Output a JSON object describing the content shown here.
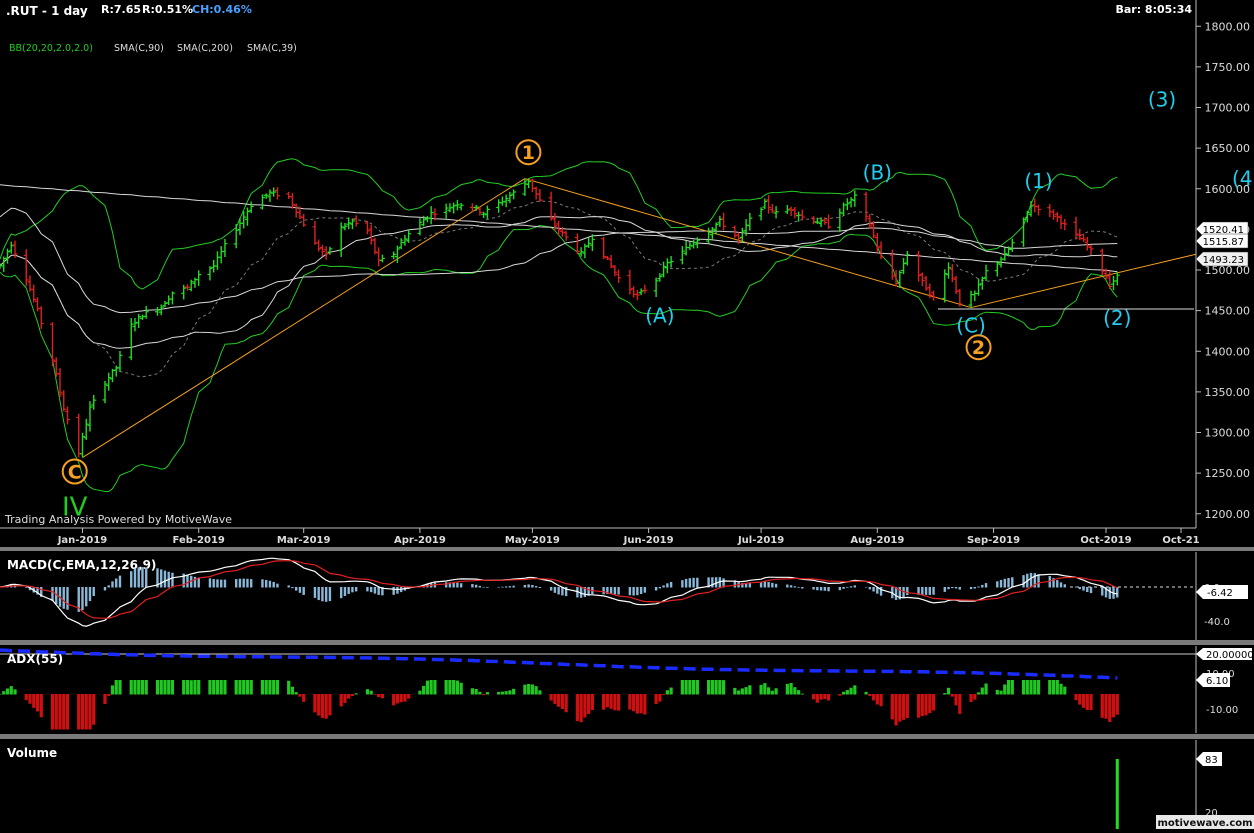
{
  "header": {
    "symbol": ".RUT - 1 day",
    "range": "R:7.65",
    "return": "R:0.51%",
    "change": "CH:0.46%",
    "bar_timer": "Bar: 8:05:34",
    "indicators": [
      "BB(20,20,2.0,2.0)",
      "SMA(C,90)",
      "SMA(C,200)",
      "SMA(C,39)"
    ]
  },
  "watermark": "Trading Analysis Powered by MotiveWave",
  "footer_logo": "motivewave.com",
  "colors": {
    "up": "#22dd22",
    "down": "#e02020",
    "bb": "#22cc22",
    "sma": "#d8d8d8",
    "orange": "#f5a020",
    "cyan": "#22ccee",
    "green_label": "#22cc22",
    "macd_hist": "#8ab8d8",
    "adx_line": "#1a2cff"
  },
  "price_panel": {
    "y_ticks": [
      "1800.00",
      "1750.00",
      "1700.00",
      "1650.00",
      "1600.00",
      "1550.00",
      "1500.00",
      "1450.00",
      "1400.00",
      "1350.00",
      "1300.00",
      "1250.00",
      "1200.00"
    ],
    "price_tags": [
      "1520.41",
      "1515.87",
      "1493.23"
    ],
    "support_level": 1452
  },
  "x_axis": {
    "labels": [
      "Jan-2019",
      "Feb-2019",
      "Mar-2019",
      "Apr-2019",
      "May-2019",
      "Jun-2019",
      "Jul-2019",
      "Aug-2019",
      "Sep-2019",
      "Oct-2019",
      "Oct-21"
    ]
  },
  "wave_labels": {
    "primary": [
      {
        "text": "1",
        "price": 1645,
        "style": "circle"
      },
      {
        "text": "2",
        "price": 1405,
        "style": "circle"
      },
      {
        "text": "C",
        "price": 1252,
        "style": "circle"
      },
      {
        "text": "IV",
        "price": 1210,
        "style": "plain"
      }
    ],
    "intermediate": [
      {
        "text": "(A)",
        "price": 1445
      },
      {
        "text": "(B)",
        "price": 1621
      },
      {
        "text": "(C)",
        "price": 1433
      },
      {
        "text": "(1)",
        "price": 1611
      },
      {
        "text": "(2)",
        "price": 1442
      },
      {
        "text": "(3)",
        "price": 1711
      },
      {
        "text": "(4",
        "price": 1614
      }
    ]
  },
  "macd_panel": {
    "title": "MACD(C,EMA,12,26,9)",
    "y_ticks": [
      "0.0",
      "-40.0"
    ],
    "value_tag": "-6.42"
  },
  "adx_panel": {
    "title": "ADX(55)",
    "y_ticks": [
      "20.00000",
      "10.00",
      "-10.00"
    ],
    "value_tag": "6.10"
  },
  "volume_panel": {
    "title": "Volume",
    "y_ticks": [
      "83",
      "20"
    ]
  },
  "chart_data": {
    "type": "candlestick",
    "symbol": "RUT",
    "interval": "1 day",
    "ylim": [
      1180,
      1820
    ],
    "x_range": [
      "2018-12-10",
      "2019-10-25"
    ],
    "ohlc": [
      [
        "2018-12-10",
        1502,
        1520,
        1485,
        1505
      ],
      [
        "2018-12-13",
        1505,
        1540,
        1498,
        1532
      ],
      [
        "2018-12-17",
        1528,
        1552,
        1480,
        1490
      ],
      [
        "2018-12-20",
        1490,
        1495,
        1440,
        1450
      ],
      [
        "2018-12-24",
        1450,
        1455,
        1380,
        1390
      ],
      [
        "2018-12-27",
        1390,
        1395,
        1320,
        1330
      ],
      [
        "2018-12-31",
        1330,
        1335,
        1265,
        1275
      ],
      [
        "2019-01-03",
        1275,
        1340,
        1270,
        1330
      ],
      [
        "2019-01-07",
        1330,
        1372,
        1325,
        1362
      ],
      [
        "2019-01-10",
        1362,
        1390,
        1340,
        1380
      ],
      [
        "2019-01-14",
        1380,
        1445,
        1375,
        1432
      ],
      [
        "2019-01-17",
        1432,
        1450,
        1420,
        1445
      ],
      [
        "2019-01-22",
        1445,
        1465,
        1430,
        1455
      ],
      [
        "2019-01-25",
        1455,
        1480,
        1445,
        1472
      ],
      [
        "2019-01-29",
        1472,
        1485,
        1455,
        1478
      ],
      [
        "2019-02-01",
        1478,
        1502,
        1470,
        1495
      ],
      [
        "2019-02-05",
        1495,
        1515,
        1485,
        1505
      ],
      [
        "2019-02-08",
        1505,
        1540,
        1498,
        1530
      ],
      [
        "2019-02-12",
        1530,
        1565,
        1525,
        1558
      ],
      [
        "2019-02-15",
        1558,
        1590,
        1552,
        1580
      ],
      [
        "2019-02-20",
        1580,
        1605,
        1572,
        1595
      ],
      [
        "2019-02-25",
        1595,
        1610,
        1580,
        1590
      ],
      [
        "2019-02-28",
        1590,
        1598,
        1555,
        1565
      ],
      [
        "2019-03-04",
        1565,
        1572,
        1525,
        1532
      ],
      [
        "2019-03-07",
        1532,
        1540,
        1510,
        1518
      ],
      [
        "2019-03-11",
        1518,
        1560,
        1512,
        1552
      ],
      [
        "2019-03-14",
        1552,
        1570,
        1540,
        1560
      ],
      [
        "2019-03-18",
        1560,
        1575,
        1540,
        1548
      ],
      [
        "2019-03-21",
        1548,
        1560,
        1500,
        1510
      ],
      [
        "2019-03-25",
        1510,
        1528,
        1495,
        1520
      ],
      [
        "2019-03-28",
        1520,
        1548,
        1515,
        1540
      ],
      [
        "2019-04-01",
        1540,
        1565,
        1535,
        1558
      ],
      [
        "2019-04-04",
        1558,
        1578,
        1552,
        1570
      ],
      [
        "2019-04-08",
        1570,
        1585,
        1562,
        1575
      ],
      [
        "2019-04-11",
        1575,
        1590,
        1568,
        1582
      ],
      [
        "2019-04-15",
        1582,
        1592,
        1570,
        1578
      ],
      [
        "2019-04-18",
        1578,
        1590,
        1560,
        1570
      ],
      [
        "2019-04-23",
        1570,
        1590,
        1565,
        1585
      ],
      [
        "2019-04-26",
        1585,
        1600,
        1578,
        1595
      ],
      [
        "2019-04-30",
        1595,
        1618,
        1588,
        1610
      ],
      [
        "2019-05-03",
        1610,
        1618,
        1575,
        1585
      ],
      [
        "2019-05-07",
        1585,
        1590,
        1545,
        1555
      ],
      [
        "2019-05-10",
        1555,
        1565,
        1530,
        1540
      ],
      [
        "2019-05-14",
        1540,
        1555,
        1510,
        1520
      ],
      [
        "2019-05-17",
        1520,
        1548,
        1515,
        1540
      ],
      [
        "2019-05-21",
        1540,
        1550,
        1505,
        1512
      ],
      [
        "2019-05-24",
        1512,
        1520,
        1482,
        1490
      ],
      [
        "2019-05-29",
        1490,
        1495,
        1460,
        1468
      ],
      [
        "2019-06-03",
        1468,
        1495,
        1460,
        1488
      ],
      [
        "2019-06-06",
        1488,
        1515,
        1482,
        1508
      ],
      [
        "2019-06-10",
        1508,
        1530,
        1500,
        1522
      ],
      [
        "2019-06-13",
        1522,
        1540,
        1515,
        1535
      ],
      [
        "2019-06-17",
        1535,
        1555,
        1528,
        1548
      ],
      [
        "2019-06-20",
        1548,
        1568,
        1540,
        1560
      ],
      [
        "2019-06-25",
        1560,
        1565,
        1530,
        1538
      ],
      [
        "2019-06-28",
        1538,
        1568,
        1532,
        1562
      ],
      [
        "2019-07-02",
        1562,
        1590,
        1555,
        1582
      ],
      [
        "2019-07-05",
        1582,
        1588,
        1562,
        1570
      ],
      [
        "2019-07-09",
        1570,
        1580,
        1560,
        1575
      ],
      [
        "2019-07-12",
        1575,
        1582,
        1560,
        1565
      ],
      [
        "2019-07-16",
        1565,
        1575,
        1552,
        1560
      ],
      [
        "2019-07-19",
        1560,
        1568,
        1548,
        1555
      ],
      [
        "2019-07-23",
        1555,
        1585,
        1550,
        1578
      ],
      [
        "2019-07-26",
        1578,
        1600,
        1570,
        1590
      ],
      [
        "2019-07-30",
        1590,
        1598,
        1548,
        1555
      ],
      [
        "2019-08-02",
        1555,
        1560,
        1505,
        1515
      ],
      [
        "2019-08-06",
        1515,
        1522,
        1470,
        1485
      ],
      [
        "2019-08-09",
        1485,
        1530,
        1480,
        1520
      ],
      [
        "2019-08-13",
        1520,
        1528,
        1475,
        1485
      ],
      [
        "2019-08-16",
        1485,
        1500,
        1458,
        1465
      ],
      [
        "2019-08-20",
        1465,
        1515,
        1460,
        1505
      ],
      [
        "2019-08-23",
        1505,
        1510,
        1452,
        1460
      ],
      [
        "2019-08-27",
        1460,
        1480,
        1450,
        1470
      ],
      [
        "2019-08-30",
        1470,
        1505,
        1465,
        1498
      ],
      [
        "2019-09-04",
        1498,
        1525,
        1492,
        1518
      ],
      [
        "2019-09-07",
        1518,
        1545,
        1512,
        1540
      ],
      [
        "2019-09-11",
        1540,
        1590,
        1535,
        1580
      ],
      [
        "2019-09-14",
        1580,
        1592,
        1570,
        1575
      ],
      [
        "2019-09-18",
        1575,
        1582,
        1558,
        1565
      ],
      [
        "2019-09-21",
        1565,
        1572,
        1545,
        1550
      ],
      [
        "2019-09-25",
        1550,
        1556,
        1528,
        1535
      ],
      [
        "2019-09-28",
        1535,
        1540,
        1510,
        1518
      ],
      [
        "2019-10-02",
        1518,
        1525,
        1472,
        1482
      ],
      [
        "2019-10-04",
        1482,
        1498,
        1470,
        1492
      ]
    ],
    "volume_last": 83
  }
}
